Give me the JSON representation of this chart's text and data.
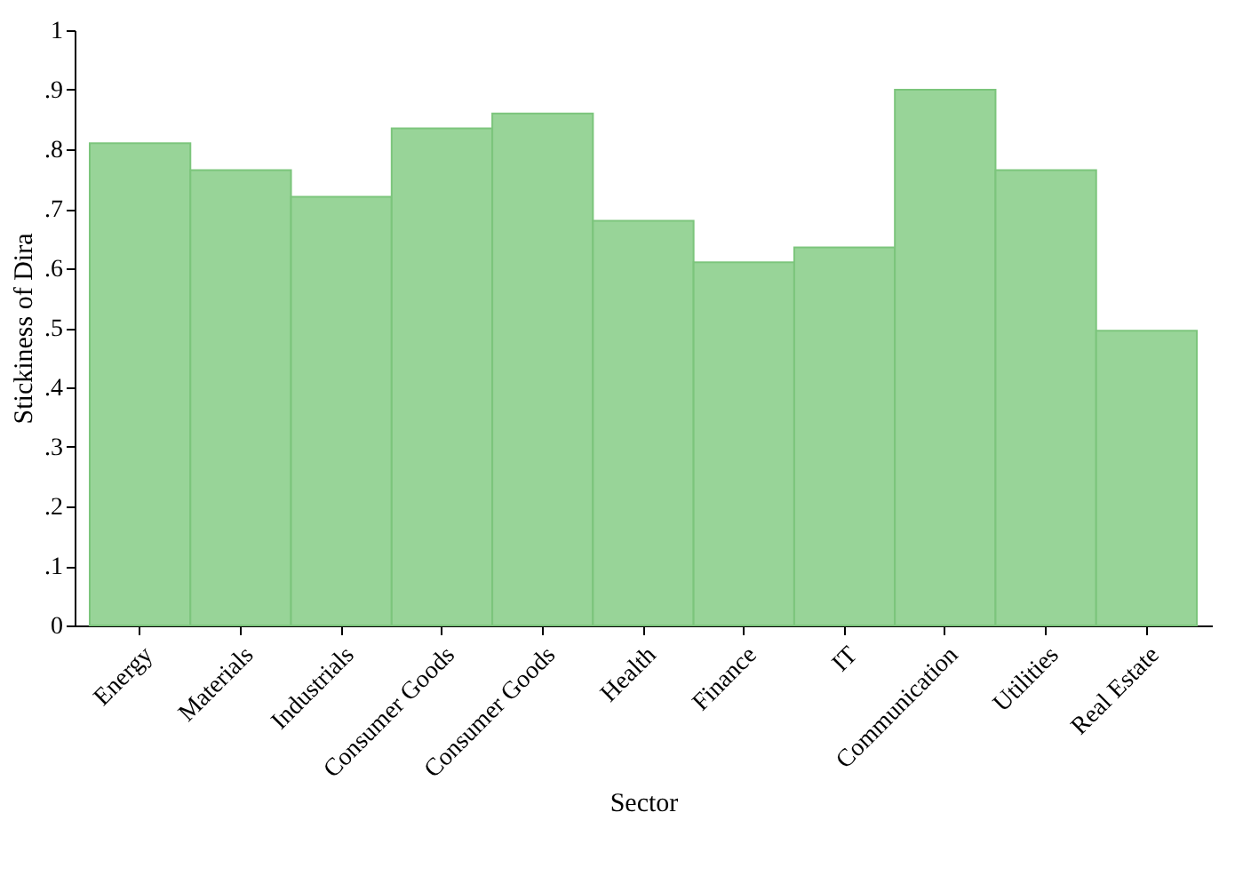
{
  "chart_data": {
    "type": "bar",
    "xlabel": "Sector",
    "ylabel": "Stickiness of Dira",
    "categories": [
      "Energy",
      "Materials",
      "Industrials",
      "Consumer Goods",
      "Consumer Goods",
      "Health",
      "Finance",
      "IT",
      "Communication",
      "Utilities",
      "Real Estate"
    ],
    "values": [
      0.81,
      0.765,
      0.72,
      0.835,
      0.86,
      0.68,
      0.61,
      0.635,
      0.9,
      0.765,
      0.495
    ],
    "color": "#98d498",
    "ylim": [
      0,
      1
    ],
    "yticks": [
      0,
      {
        "value": 0.1,
        "label": ".1"
      },
      {
        "value": 0.2,
        "label": ".2"
      },
      {
        "value": 0.3,
        "label": ".3"
      },
      {
        "value": 0.4,
        "label": ".4"
      },
      {
        "value": 0.5,
        "label": ".5"
      },
      {
        "value": 0.6,
        "label": ".6"
      },
      {
        "value": 0.7,
        "label": ".7"
      },
      {
        "value": 0.8,
        "label": ".8"
      },
      {
        "value": 0.9,
        "label": ".9"
      },
      1
    ],
    "grid": false
  }
}
